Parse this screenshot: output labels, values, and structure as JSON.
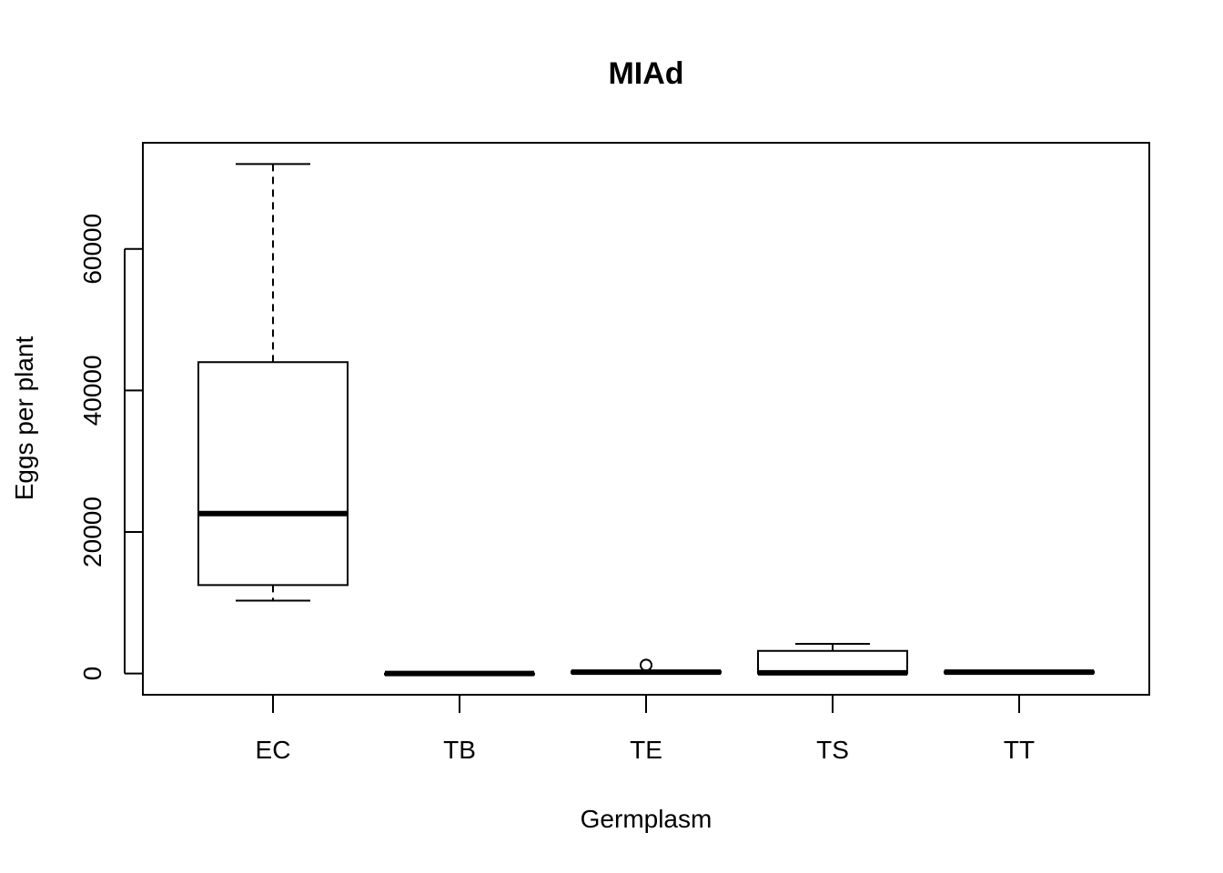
{
  "chart_data": {
    "type": "boxplot",
    "title": "MIAd",
    "xlabel": "Germplasm",
    "ylabel": "Eggs per plant",
    "categories": [
      "EC",
      "TB",
      "TE",
      "TS",
      "TT"
    ],
    "boxes": [
      {
        "category": "EC",
        "whisker_low": 10300,
        "q1": 12500,
        "median": 22600,
        "q3": 44000,
        "whisker_high": 72000,
        "outliers": []
      },
      {
        "category": "TB",
        "whisker_low": 0,
        "q1": 0,
        "median": 0,
        "q3": 0,
        "whisker_high": 0,
        "outliers": []
      },
      {
        "category": "TE",
        "whisker_low": 0,
        "q1": 100,
        "median": 200,
        "q3": 300,
        "whisker_high": 400,
        "outliers": [
          1200
        ]
      },
      {
        "category": "TS",
        "whisker_low": 0,
        "q1": 0,
        "median": 100,
        "q3": 3200,
        "whisker_high": 4200,
        "outliers": []
      },
      {
        "category": "TT",
        "whisker_low": 0,
        "q1": 100,
        "median": 200,
        "q3": 300,
        "whisker_high": 400,
        "outliers": []
      }
    ],
    "yticks": [
      0,
      20000,
      40000,
      60000
    ],
    "ytick_labels": [
      "0",
      "20000",
      "40000",
      "60000"
    ],
    "ylim": [
      -3000,
      75000
    ],
    "grid": false,
    "legend": "none"
  }
}
